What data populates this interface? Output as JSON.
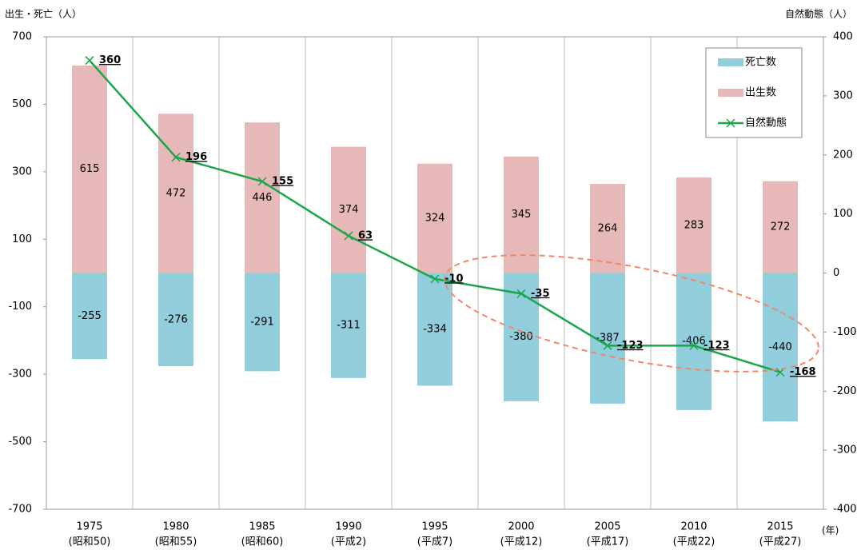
{
  "chart_data": {
    "type": "bar_line",
    "y_label": "出生・死亡（人）",
    "y2_label": "自然動態（人）",
    "x_unit": "(年)",
    "categories": [
      "1975",
      "1980",
      "1985",
      "1990",
      "1995",
      "2000",
      "2005",
      "2010",
      "2015"
    ],
    "era_labels": [
      "(昭和50)",
      "(昭和55)",
      "(昭和60)",
      "(平成2)",
      "(平成7)",
      "(平成12)",
      "(平成17)",
      "(平成22)",
      "(平成27)"
    ],
    "series": [
      {
        "name": "死亡数",
        "kind": "bar",
        "color": "#92cddc",
        "values": [
          -255,
          -276,
          -291,
          -311,
          -334,
          -380,
          -387,
          -406,
          -440
        ]
      },
      {
        "name": "出生数",
        "kind": "bar",
        "color": "#e6b9b8",
        "values": [
          615,
          472,
          446,
          374,
          324,
          345,
          264,
          283,
          272
        ]
      },
      {
        "name": "自然動態",
        "kind": "line",
        "axis": "y2",
        "color": "#1aa64a",
        "values": [
          360,
          196,
          155,
          63,
          -10,
          -35,
          -123,
          -123,
          -168
        ]
      }
    ],
    "ylim": [
      -700,
      700
    ],
    "yticks": [
      700,
      500,
      300,
      100,
      -100,
      -300,
      -500,
      -700
    ],
    "y2lim": [
      -400,
      400
    ],
    "y2ticks": [
      400,
      300,
      200,
      100,
      0,
      -100,
      -200,
      -300,
      -400
    ],
    "legend": "top-right"
  }
}
